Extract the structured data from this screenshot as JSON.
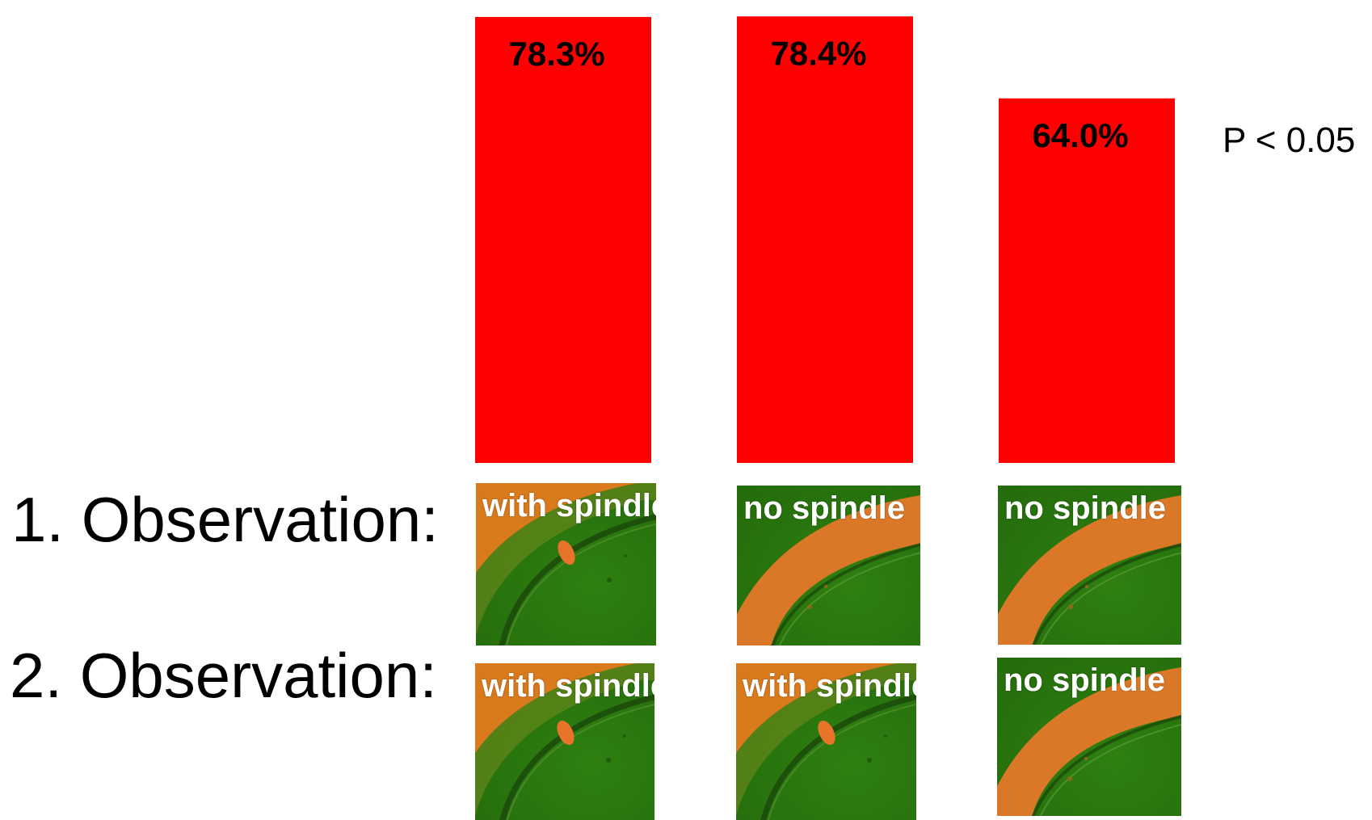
{
  "chart_data": {
    "type": "bar",
    "categories": [
      "",
      "",
      ""
    ],
    "values": [
      78.3,
      78.4,
      64.0
    ],
    "data_labels": [
      "78.3%",
      "78.4%",
      "64.0%"
    ],
    "ylim": [
      0,
      80
    ],
    "grid": false,
    "bar_color": "#ff0000",
    "annotation": "P < 0.05"
  },
  "rows": [
    {
      "label": "1. Observation:",
      "cells": [
        "with spindle",
        "no spindle",
        "no spindle"
      ]
    },
    {
      "label": "2. Observation:",
      "cells": [
        "with spindle",
        "with spindle",
        "no spindle"
      ]
    }
  ],
  "colors": {
    "bar": "#ff0000",
    "thumb_bg": "#2f7f12",
    "thumb_rim": "#e87a1e"
  }
}
